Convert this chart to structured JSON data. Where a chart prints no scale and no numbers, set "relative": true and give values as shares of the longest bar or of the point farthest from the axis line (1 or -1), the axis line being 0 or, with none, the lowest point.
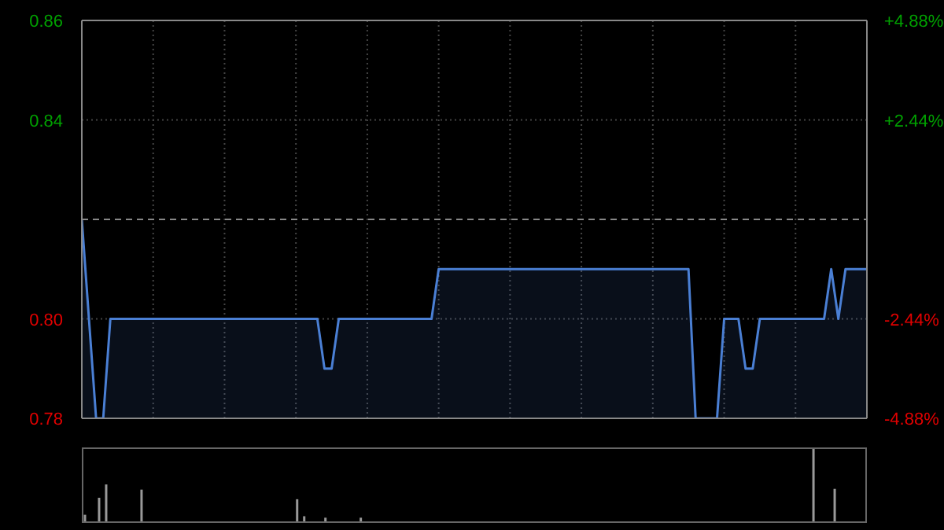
{
  "chart_data": [
    {
      "type": "area",
      "categories": [
        null,
        null,
        null,
        null,
        null,
        null,
        null,
        null,
        null,
        null,
        null,
        null,
        null,
        null,
        null,
        null,
        null,
        null,
        null,
        null,
        null,
        null,
        null,
        null,
        null,
        null,
        null,
        null,
        null,
        null,
        null,
        null,
        null,
        null,
        null,
        null,
        null,
        null,
        null,
        null,
        null,
        null,
        null,
        null,
        null,
        null,
        null,
        null,
        null,
        null,
        null,
        null,
        null,
        null,
        null,
        null,
        null,
        null,
        null,
        null,
        null,
        null,
        null,
        null,
        null,
        null,
        null,
        null,
        null,
        null,
        null,
        null,
        null,
        null,
        null,
        null,
        null,
        null,
        null,
        null,
        null,
        null,
        null,
        null,
        null,
        null,
        null,
        null,
        null,
        null,
        null,
        null,
        null,
        null,
        null,
        null,
        null,
        null,
        null,
        null,
        null,
        null,
        null,
        null,
        null,
        null,
        null,
        null,
        null,
        null,
        null
      ],
      "series": [
        {
          "color": "#4a7fd4",
          "values": [
            0.82,
            0.8,
            0.78,
            0.78,
            0.8,
            0.8,
            0.8,
            0.8,
            0.8,
            0.8,
            0.8,
            0.8,
            0.8,
            0.8,
            0.8,
            0.8,
            0.8,
            0.8,
            0.8,
            0.8,
            0.8,
            0.8,
            0.8,
            0.8,
            0.8,
            0.8,
            0.8,
            0.8,
            0.8,
            0.8,
            0.8,
            0.8,
            0.8,
            0.8,
            0.79,
            0.79,
            0.8,
            0.8,
            0.8,
            0.8,
            0.8,
            0.8,
            0.8,
            0.8,
            0.8,
            0.8,
            0.8,
            0.8,
            0.8,
            0.8,
            0.81,
            0.81,
            0.81,
            0.81,
            0.81,
            0.81,
            0.81,
            0.81,
            0.81,
            0.81,
            0.81,
            0.81,
            0.81,
            0.81,
            0.81,
            0.81,
            0.81,
            0.81,
            0.81,
            0.81,
            0.81,
            0.81,
            0.81,
            0.81,
            0.81,
            0.81,
            0.81,
            0.81,
            0.81,
            0.81,
            0.81,
            0.81,
            0.81,
            0.81,
            0.81,
            0.81,
            0.78,
            0.78,
            0.78,
            0.78,
            0.8,
            0.8,
            0.8,
            0.79,
            0.79,
            0.8,
            0.8,
            0.8,
            0.8,
            0.8,
            0.8,
            0.8,
            0.8,
            0.8,
            0.8,
            0.81,
            0.8,
            0.81,
            0.81,
            0.81,
            0.81
          ]
        }
      ],
      "ylim": [
        0.78,
        0.86
      ],
      "yticks": [
        0.78,
        {
          "value": 0.8,
          "label": "0.80"
        },
        0.84,
        0.86
      ],
      "y2lim": [
        -4.88,
        4.88
      ],
      "y2ticks": [
        {
          "value": -4.88,
          "label": "-4.88%"
        },
        {
          "value": -2.44,
          "label": "-2.44%"
        },
        {
          "value": 2.44,
          "label": "+2.44%"
        },
        {
          "value": 4.88,
          "label": "+4.88%"
        }
      ],
      "ref_lines": [
        {
          "axis": "y",
          "value": 0.82,
          "color": "#888888",
          "line_style": "dashed"
        }
      ],
      "grid": true,
      "tick_labels": "y"
    },
    {
      "type": "bar",
      "relative": true,
      "tick_labels": false,
      "categories": [
        null,
        null,
        null,
        null,
        null,
        null,
        null,
        null,
        null,
        null,
        null,
        null,
        null,
        null,
        null,
        null,
        null,
        null,
        null,
        null,
        null,
        null,
        null,
        null,
        null,
        null,
        null,
        null,
        null,
        null,
        null,
        null,
        null,
        null,
        null,
        null,
        null,
        null,
        null,
        null,
        null,
        null,
        null,
        null,
        null,
        null,
        null,
        null,
        null,
        null,
        null,
        null,
        null,
        null,
        null,
        null,
        null,
        null,
        null,
        null,
        null,
        null,
        null,
        null,
        null,
        null,
        null,
        null,
        null,
        null,
        null,
        null,
        null,
        null,
        null,
        null,
        null,
        null,
        null,
        null,
        null,
        null,
        null,
        null,
        null,
        null,
        null,
        null,
        null,
        null,
        null,
        null,
        null,
        null,
        null,
        null,
        null,
        null,
        null,
        null,
        null,
        null,
        null,
        null,
        null,
        null,
        null,
        null,
        null,
        null,
        null
      ],
      "series": [
        {
          "color": "#999999",
          "values": [
            0.1,
            null,
            0.33,
            0.51,
            null,
            null,
            null,
            null,
            0.44,
            null,
            null,
            null,
            null,
            null,
            null,
            null,
            null,
            null,
            null,
            null,
            null,
            null,
            null,
            null,
            null,
            null,
            null,
            null,
            null,
            null,
            0.31,
            0.08,
            null,
            null,
            0.06,
            null,
            null,
            null,
            null,
            0.06,
            null,
            null,
            null,
            null,
            null,
            null,
            null,
            null,
            null,
            null,
            null,
            null,
            null,
            null,
            null,
            null,
            null,
            null,
            null,
            null,
            null,
            null,
            null,
            null,
            null,
            null,
            null,
            null,
            null,
            null,
            null,
            null,
            null,
            null,
            null,
            null,
            null,
            null,
            null,
            null,
            null,
            null,
            null,
            null,
            null,
            null,
            null,
            null,
            null,
            null,
            null,
            null,
            null,
            null,
            null,
            null,
            null,
            null,
            null,
            null,
            null,
            null,
            null,
            1,
            null,
            null,
            0.45,
            null,
            null,
            null,
            null
          ]
        }
      ]
    }
  ]
}
